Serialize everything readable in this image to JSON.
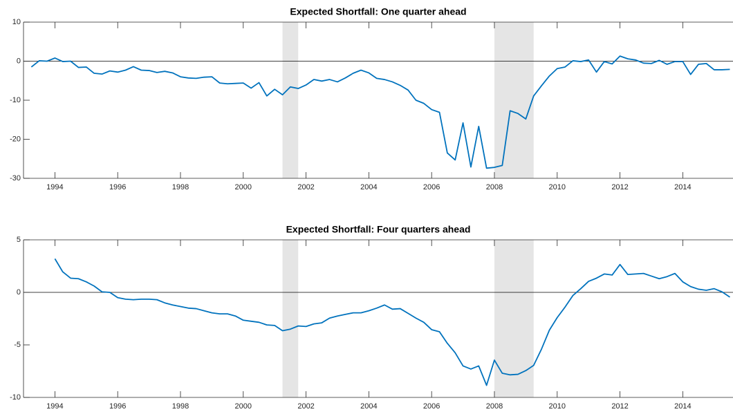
{
  "chart_data": [
    {
      "type": "line",
      "title": "Expected Shortfall: One quarter ahead",
      "x": [
        1993.25,
        1993.5,
        1993.75,
        1994,
        1994.25,
        1994.5,
        1994.75,
        1995,
        1995.25,
        1995.5,
        1995.75,
        1996,
        1996.25,
        1996.5,
        1996.75,
        1997,
        1997.25,
        1997.5,
        1997.75,
        1998,
        1998.25,
        1998.5,
        1998.75,
        1999,
        1999.25,
        1999.5,
        1999.75,
        2000,
        2000.25,
        2000.5,
        2000.75,
        2001,
        2001.25,
        2001.5,
        2001.75,
        2002,
        2002.25,
        2002.5,
        2002.75,
        2003,
        2003.25,
        2003.5,
        2003.75,
        2004,
        2004.25,
        2004.5,
        2004.75,
        2005,
        2005.25,
        2005.5,
        2005.75,
        2006,
        2006.25,
        2006.5,
        2006.75,
        2007,
        2007.25,
        2007.5,
        2007.75,
        2008,
        2008.25,
        2008.5,
        2008.75,
        2009,
        2009.25,
        2009.5,
        2009.75,
        2010,
        2010.25,
        2010.5,
        2010.75,
        2011,
        2011.25,
        2011.5,
        2011.75,
        2012,
        2012.25,
        2012.5,
        2012.75,
        2013,
        2013.25,
        2013.5,
        2013.75,
        2014,
        2014.25,
        2014.5,
        2014.75,
        2015,
        2015.25,
        2015.5
      ],
      "series": [
        {
          "color": "#0072bd",
          "values": [
            -1.5,
            0.1,
            0,
            0.8,
            -0.1,
            0,
            -1.6,
            -1.5,
            -3.1,
            -3.3,
            -2.5,
            -2.8,
            -2.3,
            -1.4,
            -2.3,
            -2.4,
            -2.9,
            -2.6,
            -3.0,
            -4.0,
            -4.3,
            -4.4,
            -4.1,
            -4.0,
            -5.6,
            -5.8,
            -5.7,
            -5.6,
            -6.9,
            -5.5,
            -8.9,
            -7.2,
            -8.6,
            -6.6,
            -7.0,
            -6.1,
            -4.7,
            -5.1,
            -4.7,
            -5.3,
            -4.3,
            -3.1,
            -2.3,
            -3.0,
            -4.4,
            -4.7,
            -5.3,
            -6.2,
            -7.4,
            -10.0,
            -10.8,
            -12.4,
            -13.1,
            -23.5,
            -25.3,
            -15.8,
            -27.1,
            -16.7,
            -27.4,
            -27.2,
            -26.7,
            -12.7,
            -13.4,
            -14.8,
            -8.9,
            -6.3,
            -3.8,
            -1.9,
            -1.5,
            0.1,
            -0.1,
            0.3,
            -2.8,
            -0.1,
            -0.7,
            1.3,
            0.6,
            0.3,
            -0.5,
            -0.6,
            0.2,
            -0.8,
            -0.1,
            -0.1,
            -3.4,
            -0.8,
            -0.6,
            -2.2,
            -2.2,
            -2.1
          ]
        }
      ],
      "xlim": [
        1993,
        2015.6
      ],
      "xticks": [
        1994,
        1996,
        1998,
        2000,
        2002,
        2004,
        2006,
        2008,
        2010,
        2012,
        2014
      ],
      "ylim": [
        -30,
        10
      ],
      "yticks": [
        10,
        0,
        -10,
        -20,
        -30
      ],
      "hline": 0,
      "shaded_regions": [
        [
          2001.25,
          2001.75
        ],
        [
          2008.0,
          2009.25
        ]
      ],
      "shade_color": "#e5e5e5"
    },
    {
      "type": "line",
      "title": "Expected Shortfall: Four quarters ahead",
      "x": [
        1994,
        1994.25,
        1994.5,
        1994.75,
        1995,
        1995.25,
        1995.5,
        1995.75,
        1996,
        1996.25,
        1996.5,
        1996.75,
        1997,
        1997.25,
        1997.5,
        1997.75,
        1998,
        1998.25,
        1998.5,
        1998.75,
        1999,
        1999.25,
        1999.5,
        1999.75,
        2000,
        2000.25,
        2000.5,
        2000.75,
        2001,
        2001.25,
        2001.5,
        2001.75,
        2002,
        2002.25,
        2002.5,
        2002.75,
        2003,
        2003.25,
        2003.5,
        2003.75,
        2004,
        2004.25,
        2004.5,
        2004.75,
        2005,
        2005.25,
        2005.5,
        2005.75,
        2006,
        2006.25,
        2006.5,
        2006.75,
        2007,
        2007.25,
        2007.5,
        2007.75,
        2008,
        2008.25,
        2008.5,
        2008.75,
        2009,
        2009.25,
        2009.5,
        2009.75,
        2010,
        2010.25,
        2010.5,
        2010.75,
        2011,
        2011.25,
        2011.5,
        2011.75,
        2012,
        2012.25,
        2012.5,
        2012.75,
        2013,
        2013.25,
        2013.5,
        2013.75,
        2014,
        2014.25,
        2014.5,
        2014.75,
        2015,
        2015.25,
        2015.5
      ],
      "series": [
        {
          "color": "#0072bd",
          "values": [
            3.2,
            1.95,
            1.35,
            1.3,
            1.0,
            0.6,
            0.05,
            0.0,
            -0.5,
            -0.65,
            -0.7,
            -0.65,
            -0.65,
            -0.7,
            -1.0,
            -1.2,
            -1.35,
            -1.5,
            -1.55,
            -1.75,
            -1.95,
            -2.05,
            -2.05,
            -2.25,
            -2.65,
            -2.75,
            -2.85,
            -3.1,
            -3.15,
            -3.65,
            -3.5,
            -3.2,
            -3.25,
            -3.0,
            -2.9,
            -2.45,
            -2.25,
            -2.1,
            -1.95,
            -1.95,
            -1.75,
            -1.5,
            -1.2,
            -1.6,
            -1.55,
            -2.0,
            -2.45,
            -2.85,
            -3.55,
            -3.75,
            -4.85,
            -5.75,
            -7.0,
            -7.3,
            -7.0,
            -8.85,
            -6.45,
            -7.7,
            -7.85,
            -7.8,
            -7.45,
            -6.95,
            -5.4,
            -3.6,
            -2.4,
            -1.4,
            -0.3,
            0.35,
            1.05,
            1.35,
            1.75,
            1.65,
            2.65,
            1.7,
            1.75,
            1.8,
            1.55,
            1.3,
            1.5,
            1.8,
            1.0,
            0.55,
            0.3,
            0.2,
            0.35,
            0.05,
            -0.45
          ]
        }
      ],
      "xlim": [
        1993,
        2015.6
      ],
      "xticks": [
        1994,
        1996,
        1998,
        2000,
        2002,
        2004,
        2006,
        2008,
        2010,
        2012,
        2014
      ],
      "ylim": [
        -10,
        5
      ],
      "yticks": [
        5,
        0,
        -5,
        -10
      ],
      "hline": 0,
      "shaded_regions": [
        [
          2001.25,
          2001.75
        ],
        [
          2008.0,
          2009.25
        ]
      ],
      "shade_color": "#e5e5e5"
    }
  ]
}
